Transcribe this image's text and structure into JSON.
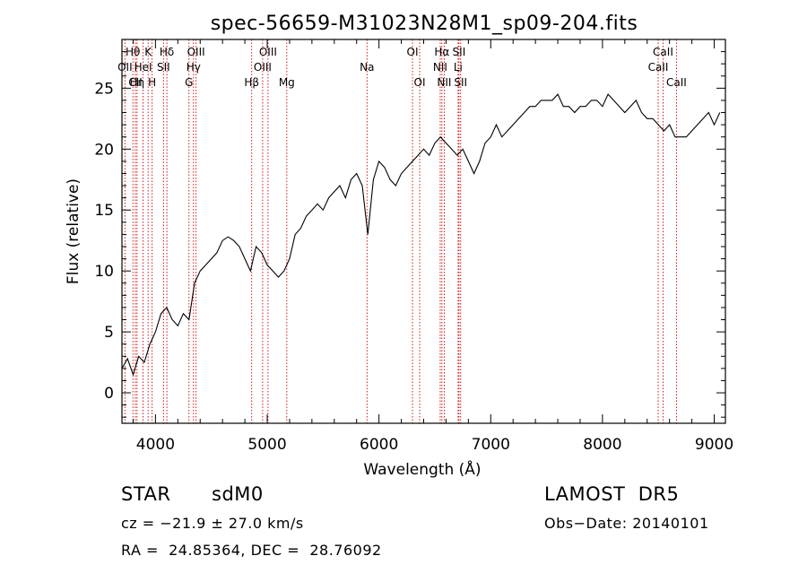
{
  "chart_data": {
    "type": "line",
    "title": "spec-56659-M31023N28M1_sp09-204.fits",
    "xlabel": "Wavelength (Å)",
    "ylabel": "Flux (relative)",
    "xlim": [
      3700,
      9100
    ],
    "ylim": [
      -2.5,
      29
    ],
    "x_ticks": [
      4000,
      5000,
      6000,
      7000,
      8000,
      9000
    ],
    "y_ticks": [
      0,
      5,
      10,
      15,
      20,
      25
    ],
    "grid": false,
    "line_color": "#000000",
    "marker_color": "#cc0000",
    "spectrum": {
      "x": [
        3700,
        3750,
        3800,
        3850,
        3900,
        3950,
        4000,
        4050,
        4100,
        4150,
        4200,
        4250,
        4300,
        4350,
        4400,
        4450,
        4500,
        4550,
        4600,
        4650,
        4700,
        4750,
        4800,
        4850,
        4900,
        4950,
        5000,
        5050,
        5100,
        5150,
        5200,
        5250,
        5300,
        5350,
        5400,
        5450,
        5500,
        5550,
        5600,
        5650,
        5700,
        5750,
        5800,
        5850,
        5900,
        5950,
        6000,
        6050,
        6100,
        6150,
        6200,
        6250,
        6300,
        6350,
        6400,
        6450,
        6500,
        6550,
        6600,
        6650,
        6700,
        6750,
        6800,
        6850,
        6900,
        6950,
        7000,
        7050,
        7100,
        7150,
        7200,
        7250,
        7300,
        7350,
        7400,
        7450,
        7500,
        7550,
        7600,
        7650,
        7700,
        7750,
        7800,
        7850,
        7900,
        7950,
        8000,
        8050,
        8100,
        8150,
        8200,
        8250,
        8300,
        8350,
        8400,
        8450,
        8500,
        8550,
        8600,
        8650,
        8700,
        8750,
        8800,
        8850,
        8900,
        8950,
        9000,
        9050
      ],
      "y": [
        2.0,
        2.8,
        1.5,
        3.0,
        2.5,
        4.0,
        5.0,
        6.5,
        7.0,
        6.0,
        5.5,
        6.5,
        6.0,
        9.0,
        10.0,
        10.5,
        11.0,
        11.5,
        12.5,
        12.8,
        12.5,
        12.0,
        11.0,
        10.0,
        12.0,
        11.5,
        10.5,
        10.0,
        9.5,
        10.0,
        11.0,
        13.0,
        13.5,
        14.5,
        15.0,
        15.5,
        15.0,
        16.0,
        16.5,
        17.0,
        16.0,
        17.5,
        18.0,
        17.0,
        13.0,
        17.5,
        19.0,
        18.5,
        17.5,
        17.0,
        18.0,
        18.5,
        19.0,
        19.5,
        20.0,
        19.5,
        20.5,
        21.0,
        20.5,
        20.0,
        19.5,
        20.0,
        19.0,
        18.0,
        19.0,
        20.5,
        21.0,
        22.0,
        21.0,
        21.5,
        22.0,
        22.5,
        23.0,
        23.5,
        23.5,
        24.0,
        24.0,
        24.0,
        24.5,
        23.5,
        23.5,
        23.0,
        23.5,
        23.5,
        24.0,
        24.0,
        23.5,
        24.5,
        24.0,
        23.5,
        23.0,
        23.5,
        24.0,
        23.0,
        22.5,
        22.5,
        22.0,
        21.5,
        22.0,
        21.0,
        21.0,
        21.0,
        21.5,
        22.0,
        22.5,
        23.0,
        22.0,
        23.0
      ]
    },
    "lines": [
      {
        "wl": 3727,
        "label": "OII",
        "row": 2
      },
      {
        "wl": 3798,
        "label": "Hθ",
        "row": 1
      },
      {
        "wl": 3820,
        "label": "CII",
        "row": 3
      },
      {
        "wl": 3835,
        "label": "Hη",
        "row": 3
      },
      {
        "wl": 3889,
        "label": "HeI",
        "row": 2
      },
      {
        "wl": 3934,
        "label": "K",
        "row": 1
      },
      {
        "wl": 3970,
        "label": "H",
        "row": 3
      },
      {
        "wl": 4072,
        "label": "SII",
        "row": 2
      },
      {
        "wl": 4102,
        "label": "Hδ",
        "row": 1
      },
      {
        "wl": 4300,
        "label": "G",
        "row": 3
      },
      {
        "wl": 4340,
        "label": "Hγ",
        "row": 2
      },
      {
        "wl": 4363,
        "label": "OIII",
        "row": 1
      },
      {
        "wl": 4861,
        "label": "Hβ",
        "row": 3
      },
      {
        "wl": 4959,
        "label": "OIII",
        "row": 2
      },
      {
        "wl": 5007,
        "label": "OIII",
        "row": 1
      },
      {
        "wl": 5175,
        "label": "Mg",
        "row": 3
      },
      {
        "wl": 5893,
        "label": "Na",
        "row": 2
      },
      {
        "wl": 6300,
        "label": "OI",
        "row": 1
      },
      {
        "wl": 6364,
        "label": "OI",
        "row": 3
      },
      {
        "wl": 6548,
        "label": "NII",
        "row": 2
      },
      {
        "wl": 6563,
        "label": "Hα",
        "row": 1
      },
      {
        "wl": 6584,
        "label": "NII",
        "row": 3
      },
      {
        "wl": 6708,
        "label": "Li",
        "row": 2
      },
      {
        "wl": 6716,
        "label": "SII",
        "row": 1
      },
      {
        "wl": 6731,
        "label": "SII",
        "row": 3
      },
      {
        "wl": 8498,
        "label": "CaII",
        "row": 2
      },
      {
        "wl": 8542,
        "label": "CaII",
        "row": 1
      },
      {
        "wl": 8662,
        "label": "CaII",
        "row": 3
      }
    ]
  },
  "info": {
    "class_label": "STAR",
    "subclass": "sdM0",
    "survey": "LAMOST  DR5",
    "cz": "cz = −21.9 ± 27.0 km/s",
    "obs_date": "Obs−Date: 20140101",
    "radec": "RA =  24.85364, DEC =  28.76092"
  }
}
